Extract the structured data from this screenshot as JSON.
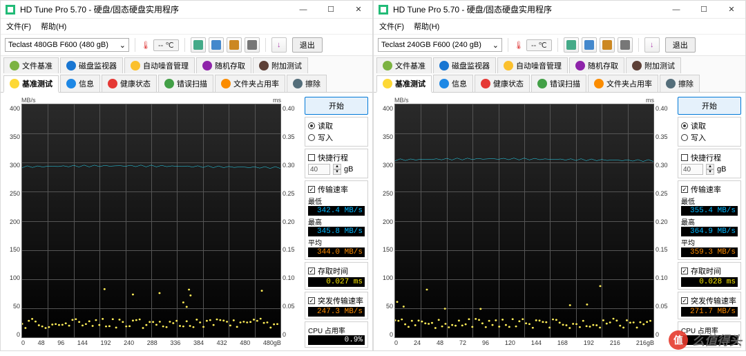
{
  "watermark": {
    "badge": "值",
    "text": "么值得头"
  },
  "shared": {
    "title_prefix": "HD Tune Pro 5.70 - 硬盘/固态硬盘实用程序",
    "menu_file": "文件(F)",
    "menu_help": "帮助(H)",
    "temp_label": "-- ℃",
    "exit_label": "退出",
    "tabs_row1": [
      {
        "label": "文件基准",
        "color": "#7cb342"
      },
      {
        "label": "磁盘监视器",
        "color": "#1976d2"
      },
      {
        "label": "自动噪音管理",
        "color": "#fbc02d"
      },
      {
        "label": "随机存取",
        "color": "#8e24aa"
      },
      {
        "label": "附加测试",
        "color": "#5d4037"
      }
    ],
    "tabs_row2": [
      {
        "label": "基准测试",
        "color": "#fdd835",
        "active": true
      },
      {
        "label": "信息",
        "color": "#1e88e5"
      },
      {
        "label": "健康状态",
        "color": "#e53935"
      },
      {
        "label": "错误扫描",
        "color": "#43a047"
      },
      {
        "label": "文件夹占用率",
        "color": "#fb8c00"
      },
      {
        "label": "擦除",
        "color": "#546e7a"
      }
    ],
    "start_label": "开始",
    "radio_read": "读取",
    "radio_write": "写入",
    "chk_short": "快捷行程",
    "short_unit": "gB",
    "short_val": "40",
    "chk_transfer": "传输速率",
    "lbl_min": "最低",
    "lbl_max": "最高",
    "lbl_avg": "平均",
    "chk_access": "存取时间",
    "chk_burst": "突发传输速率",
    "lbl_cpu": "CPU 占用率",
    "y_left_unit": "MB/s",
    "y_right_unit": "ms",
    "chart": {
      "type": "line",
      "y_ticks": [
        400,
        350,
        300,
        250,
        200,
        150,
        100,
        50,
        0
      ],
      "y2_ticks": [
        "0.40",
        "0.35",
        "0.30",
        "0.25",
        "0.20",
        "0.15",
        "0.10",
        "0.05",
        "0"
      ],
      "line_color": "#29e3ff",
      "scatter_color": "#ffee58",
      "bg_top": "#2a2a2a",
      "bg_bottom": "#000000",
      "grid_color": "#555555"
    },
    "val_colors": {
      "min": "#00b7ff",
      "max": "#00b7ff",
      "avg": "#ff8c00",
      "access": "#ffee00",
      "burst": "#ff8c00",
      "cpu": "#ffffff"
    }
  },
  "left": {
    "drive": "Teclast 480GB F600 (480 gB)",
    "x_ticks": [
      0,
      48,
      96,
      144,
      192,
      240,
      288,
      336,
      384,
      432,
      480
    ],
    "x_unit": "480gB",
    "line_val": 0.86,
    "vals": {
      "min": "342.4 MB/s",
      "max": "345.8 MB/s",
      "avg": "344.0 MB/s",
      "access": "0.027 ms",
      "burst": "247.3 MB/s",
      "cpu": "0.9%"
    }
  },
  "right": {
    "drive": "Teclast 240GB F600 (240 gB)",
    "x_ticks": [
      0,
      24,
      48,
      72,
      96,
      120,
      144,
      168,
      192,
      216
    ],
    "x_unit": "216gB",
    "line_val": 0.89,
    "vals": {
      "min": "355.4 MB/s",
      "max": "364.9 MB/s",
      "avg": "359.3 MB/s",
      "access": "0.028 ms",
      "burst": "271.7 MB/s",
      "cpu": ""
    }
  }
}
